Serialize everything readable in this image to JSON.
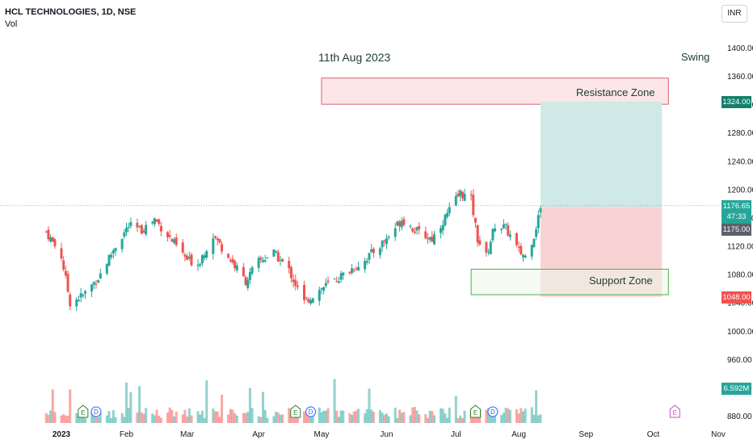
{
  "header": {
    "title": "HCL TECHNOLOGIES, 1D, NSE",
    "vol_label": "Vol",
    "currency": "INR"
  },
  "annotations": {
    "date": "11th Aug 2023",
    "swing": "Swing",
    "resistance": "Resistance Zone",
    "support": "Support Zone"
  },
  "badges": {
    "target": "1324.00",
    "last_price": "1176.65",
    "countdown": "47:33",
    "entry": "1175.00",
    "stop": "1048.00",
    "volume": "6.592M"
  },
  "colors": {
    "up": "#26a69a",
    "down": "#ef5350",
    "resistance_fill": "#fde6e8",
    "resistance_border": "#e06070",
    "support_fill": "#edf7ea",
    "support_border": "#4caf50",
    "target_fill": "#cfeae6",
    "stop_fill": "#f9d2d3"
  },
  "chart_data": {
    "type": "candlestick",
    "ylim": [
      880,
      1440
    ],
    "y_ticks": [
      880,
      920,
      960,
      1000,
      1040,
      1080,
      1120,
      1160,
      1200,
      1240,
      1280,
      1320,
      1360,
      1400
    ],
    "y_tick_labels": [
      "880.00",
      "920.00",
      "960.00",
      "1000.00",
      "1040.00",
      "1080.00",
      "1120.00",
      "1160.00",
      "1200.00",
      "1240.00",
      "1280.00",
      "1320.00",
      "1360.00",
      "1400.00"
    ],
    "x_labels": [
      {
        "label": "2023",
        "date": "2023-01-02"
      },
      {
        "label": "Feb",
        "date": "2023-02-01"
      },
      {
        "label": "Mar",
        "date": "2023-03-01"
      },
      {
        "label": "Apr",
        "date": "2023-04-03"
      },
      {
        "label": "May",
        "date": "2023-05-02"
      },
      {
        "label": "Jun",
        "date": "2023-06-01"
      },
      {
        "label": "Jul",
        "date": "2023-07-03"
      },
      {
        "label": "Aug",
        "date": "2023-08-01"
      },
      {
        "label": "Sep",
        "date": "2023-09-01"
      },
      {
        "label": "Oct",
        "date": "2023-10-02"
      },
      {
        "label": "Nov",
        "date": "2023-11-01"
      }
    ],
    "resistance_zone": {
      "low": 1320,
      "high": 1357,
      "from": "2023-05-02",
      "to": "2023-10-09"
    },
    "support_zone": {
      "low": 1051,
      "high": 1087,
      "from": "2023-07-10",
      "to": "2023-10-09"
    },
    "position": {
      "entry": 1175,
      "target": 1324,
      "stop": 1048,
      "from": "2023-08-11",
      "to": "2023-10-06"
    },
    "last_price": 1176.65,
    "events": [
      {
        "type": "E",
        "date": "2023-01-12"
      },
      {
        "type": "D",
        "date": "2023-01-18"
      },
      {
        "type": "E",
        "date": "2023-04-20"
      },
      {
        "type": "D",
        "date": "2023-04-27"
      },
      {
        "type": "E",
        "date": "2023-07-12"
      },
      {
        "type": "D",
        "date": "2023-07-20"
      },
      {
        "type": "E",
        "date": "2023-10-12",
        "upcoming": true
      }
    ],
    "close_path": [
      {
        "date": "2022-12-26",
        "close": 1140
      },
      {
        "date": "2023-01-02",
        "close": 1105
      },
      {
        "date": "2023-01-06",
        "close": 1040
      },
      {
        "date": "2023-01-12",
        "close": 1050
      },
      {
        "date": "2023-01-19",
        "close": 1075
      },
      {
        "date": "2023-01-27",
        "close": 1120
      },
      {
        "date": "2023-02-02",
        "close": 1148
      },
      {
        "date": "2023-02-08",
        "close": 1142
      },
      {
        "date": "2023-02-14",
        "close": 1158
      },
      {
        "date": "2023-02-20",
        "close": 1135
      },
      {
        "date": "2023-03-01",
        "close": 1100
      },
      {
        "date": "2023-03-06",
        "close": 1095
      },
      {
        "date": "2023-03-13",
        "close": 1135
      },
      {
        "date": "2023-03-20",
        "close": 1105
      },
      {
        "date": "2023-03-28",
        "close": 1070
      },
      {
        "date": "2023-04-03",
        "close": 1098
      },
      {
        "date": "2023-04-10",
        "close": 1110
      },
      {
        "date": "2023-04-17",
        "close": 1085
      },
      {
        "date": "2023-04-24",
        "close": 1040
      },
      {
        "date": "2023-05-02",
        "close": 1060
      },
      {
        "date": "2023-05-10",
        "close": 1075
      },
      {
        "date": "2023-05-22",
        "close": 1100
      },
      {
        "date": "2023-06-01",
        "close": 1130
      },
      {
        "date": "2023-06-08",
        "close": 1158
      },
      {
        "date": "2023-06-15",
        "close": 1140
      },
      {
        "date": "2023-06-22",
        "close": 1130
      },
      {
        "date": "2023-06-29",
        "close": 1165
      },
      {
        "date": "2023-07-05",
        "close": 1195
      },
      {
        "date": "2023-07-10",
        "close": 1185
      },
      {
        "date": "2023-07-13",
        "close": 1130
      },
      {
        "date": "2023-07-17",
        "close": 1105
      },
      {
        "date": "2023-07-21",
        "close": 1150
      },
      {
        "date": "2023-07-26",
        "close": 1145
      },
      {
        "date": "2023-08-01",
        "close": 1112
      },
      {
        "date": "2023-08-04",
        "close": 1105
      },
      {
        "date": "2023-08-08",
        "close": 1135
      },
      {
        "date": "2023-08-10",
        "close": 1160
      },
      {
        "date": "2023-08-11",
        "close": 1176.65
      }
    ],
    "volume_last": "6.592M"
  }
}
